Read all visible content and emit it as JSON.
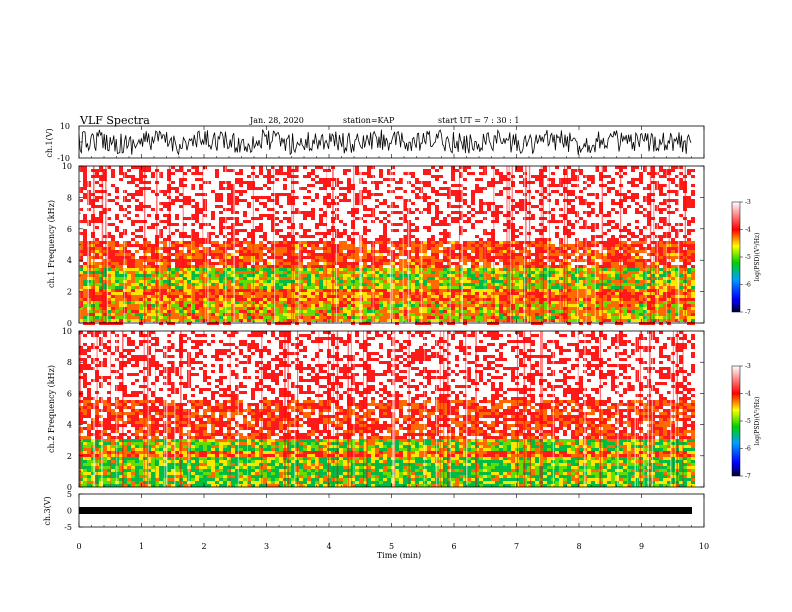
{
  "header": {
    "title": "VLF Spectra",
    "date": "Jan. 28, 2020",
    "station": "station=KAP",
    "start": "start UT =  7 : 30 : 1"
  },
  "chart_data": [
    {
      "type": "line",
      "panel": "ch1-waveform",
      "ylabel": "ch.1(V)",
      "ylim": [
        -10,
        10
      ],
      "yticks": [
        "10",
        "-10"
      ],
      "xlim": [
        0,
        10
      ]
    },
    {
      "type": "heatmap",
      "panel": "ch1-spectrogram",
      "ylabel": "ch.1  Frequency (kHz)",
      "ylim": [
        0,
        10
      ],
      "yticks": [
        "0",
        "2",
        "4",
        "6",
        "8",
        "10"
      ],
      "xlim": [
        0,
        10
      ],
      "colorbar": {
        "label": "log(PSD)(V²/Hz)",
        "ticks": [
          "-3",
          "-4",
          "-5",
          "-6",
          "-7"
        ],
        "range": [
          -7,
          -3
        ]
      },
      "bands": [
        {
          "from": 0,
          "to": 1.4,
          "level": -4.6
        },
        {
          "from": 1.4,
          "to": 2.2,
          "level": -4.3
        },
        {
          "from": 2.2,
          "to": 3.5,
          "level": -4.8
        },
        {
          "from": 3.5,
          "to": 5.3,
          "level": -4.1
        },
        {
          "from": 5.3,
          "to": 10,
          "level": -3.6
        }
      ]
    },
    {
      "type": "heatmap",
      "panel": "ch2-spectrogram",
      "ylabel": "ch.2  Frequency (kHz)",
      "ylim": [
        0,
        10
      ],
      "yticks": [
        "0",
        "2",
        "4",
        "6",
        "8",
        "10"
      ],
      "xlim": [
        0,
        10
      ],
      "colorbar": {
        "label": "log(PSD)(V²/Hz)",
        "ticks": [
          "-3",
          "-4",
          "-5",
          "-6",
          "-7"
        ],
        "range": [
          -7,
          -3
        ]
      },
      "bands": [
        {
          "from": 0,
          "to": 1.9,
          "level": -5.0
        },
        {
          "from": 1.9,
          "to": 2.4,
          "level": -4.3
        },
        {
          "from": 2.4,
          "to": 3.1,
          "level": -4.9
        },
        {
          "from": 3.1,
          "to": 5.5,
          "level": -4.0
        },
        {
          "from": 5.5,
          "to": 10,
          "level": -3.6
        }
      ]
    },
    {
      "type": "line",
      "panel": "ch3-waveform",
      "ylabel": "ch.3(V)",
      "ylim": [
        -5,
        5
      ],
      "yticks": [
        "5",
        "0",
        "-5"
      ],
      "xlim": [
        0,
        10
      ],
      "xlabel": "Time (min)",
      "xticks": [
        "0",
        "1",
        "2",
        "3",
        "4",
        "5",
        "6",
        "7",
        "8",
        "9",
        "10"
      ]
    }
  ],
  "colors": {
    "axis": "#000000",
    "colormap": [
      "#000033",
      "#0000ff",
      "#00c000",
      "#ffff00",
      "#ff0000",
      "#ffffff"
    ]
  }
}
